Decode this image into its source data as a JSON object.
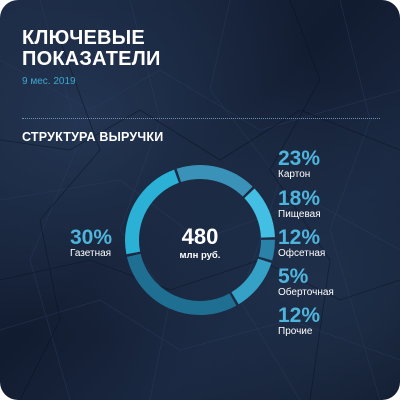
{
  "header": {
    "title_line1": "КЛЮЧЕВЫЕ",
    "title_line2": "ПОКАЗАТЕЛИ",
    "period": "9 мес. 2019"
  },
  "section": {
    "title": "СТРУКТУРА ВЫРУЧКИ"
  },
  "center": {
    "value": "480",
    "unit": "млн руб."
  },
  "colors": {
    "accent": "#4fb4dc",
    "segments": [
      "#1f6f93",
      "#2bb0d6",
      "#3a92b8",
      "#43bfe3",
      "#2a82a8",
      "#35a1c6"
    ]
  },
  "chart_data": {
    "type": "pie",
    "title": "СТРУКТУРА ВЫРУЧКИ",
    "center_label": "480 млн руб.",
    "slices": [
      {
        "label": "Газетная",
        "value": 30,
        "display": "30%"
      },
      {
        "label": "Картон",
        "value": 23,
        "display": "23%"
      },
      {
        "label": "Пищевая",
        "value": 18,
        "display": "18%"
      },
      {
        "label": "Офсетная",
        "value": 12,
        "display": "12%"
      },
      {
        "label": "Оберточная",
        "value": 5,
        "display": "5%"
      },
      {
        "label": "Прочие",
        "value": 12,
        "display": "12%"
      }
    ]
  }
}
